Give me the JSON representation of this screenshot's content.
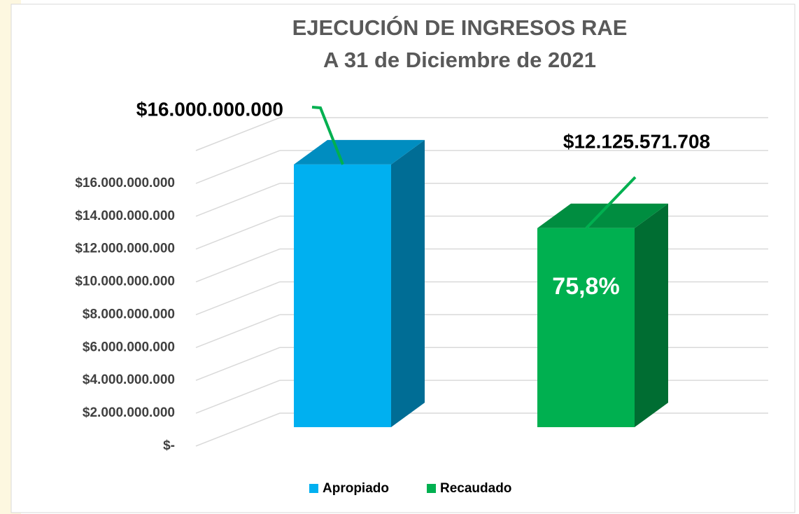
{
  "chart_data": {
    "type": "bar",
    "title": [
      "EJECUCIÓN DE INGRESOS RAE",
      "A 31 de Diciembre de 2021"
    ],
    "categories": [
      null
    ],
    "series": [
      {
        "name": "Apropiado",
        "color": "#00b0f0",
        "values": [
          16000000000
        ],
        "value_labels": [
          "$16.000.000.000"
        ]
      },
      {
        "name": "Recaudado",
        "color": "#00b050",
        "values": [
          12125571708
        ],
        "value_labels": [
          "$12.125.571.708"
        ]
      }
    ],
    "annotation": "75,8%",
    "ylim": [
      0,
      18000000000
    ],
    "yticks": [
      {
        "value": 0,
        "label": "$-"
      },
      {
        "value": 2000000000,
        "label": "$2.000.000.000"
      },
      {
        "value": 4000000000,
        "label": "$4.000.000.000"
      },
      {
        "value": 6000000000,
        "label": "$6.000.000.000"
      },
      {
        "value": 8000000000,
        "label": "$8.000.000.000"
      },
      {
        "value": 10000000000,
        "label": "$10.000.000.000"
      },
      {
        "value": 12000000000,
        "label": "$12.000.000.000"
      },
      {
        "value": 14000000000,
        "label": "$14.000.000.000"
      },
      {
        "value": 16000000000,
        "label": "$16.000.000.000"
      }
    ],
    "grid": true,
    "legend": "bottom"
  }
}
